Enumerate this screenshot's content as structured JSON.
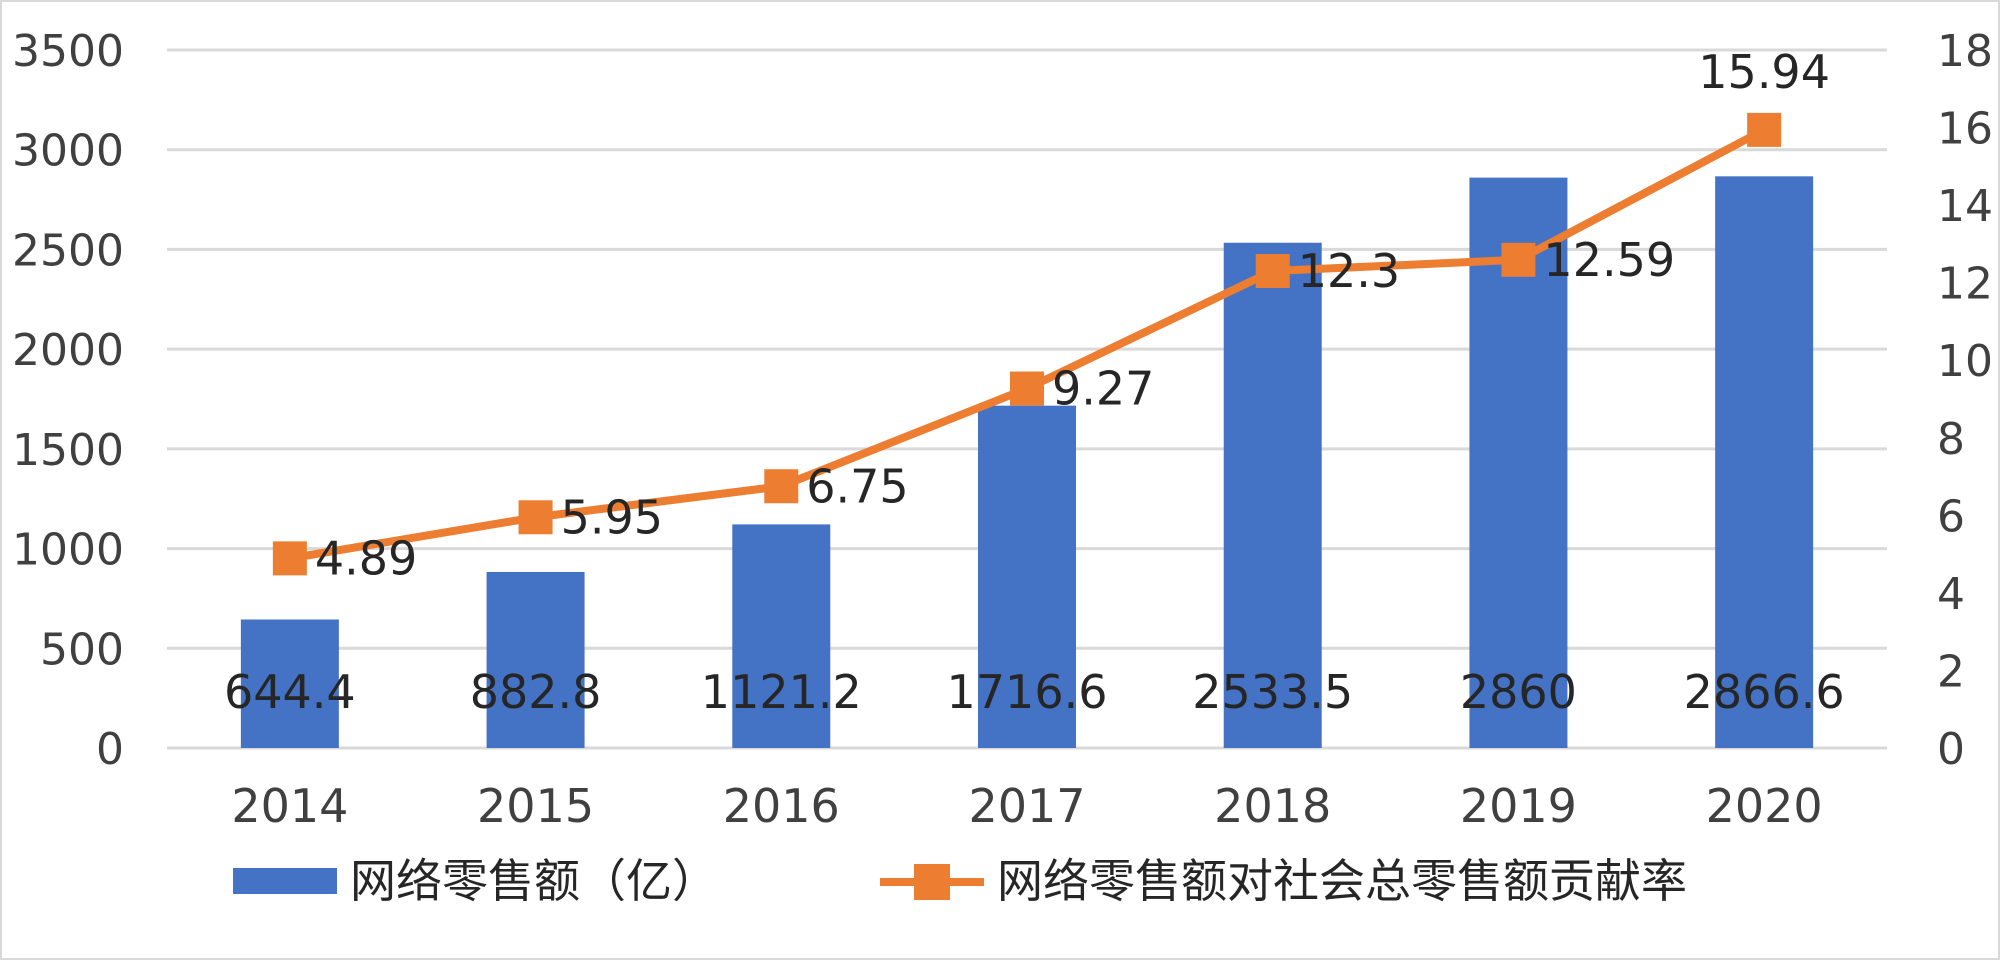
{
  "chart_data": {
    "type": "bar",
    "categories": [
      "2014",
      "2015",
      "2016",
      "2017",
      "2018",
      "2019",
      "2020"
    ],
    "series": [
      {
        "name": "网络零售额（亿）",
        "chart_type": "bar",
        "axis": "left",
        "color": "#4472C4",
        "values": [
          644.4,
          882.8,
          1121.2,
          1716.6,
          2533.5,
          2860,
          2866.6
        ],
        "labels": [
          "644.4",
          "882.8",
          "1121.2",
          "1716.6",
          "2533.5",
          "2860",
          "2866.6"
        ]
      },
      {
        "name": "网络零售额对社会总零售额贡献率",
        "chart_type": "line",
        "marker": "square",
        "axis": "right",
        "color": "#ED7D31",
        "values": [
          4.89,
          5.95,
          6.75,
          9.27,
          12.3,
          12.59,
          15.94
        ],
        "labels": [
          "4.89",
          "5.95",
          "6.75",
          "9.27",
          "12.3",
          "12.59",
          "15.94"
        ]
      }
    ],
    "y_left": {
      "min": 0,
      "max": 3500,
      "ticks": [
        "0",
        "500",
        "1000",
        "1500",
        "2000",
        "2500",
        "3000",
        "3500"
      ]
    },
    "y_right": {
      "min": 0,
      "max": 18,
      "ticks": [
        "0",
        "2",
        "4",
        "6",
        "8",
        "10",
        "12",
        "14",
        "16",
        "18"
      ]
    },
    "title": "",
    "xlabel": "",
    "ylabel": "",
    "grid": true,
    "legend_position": "bottom",
    "gridline_color": "#d9d9d9"
  }
}
